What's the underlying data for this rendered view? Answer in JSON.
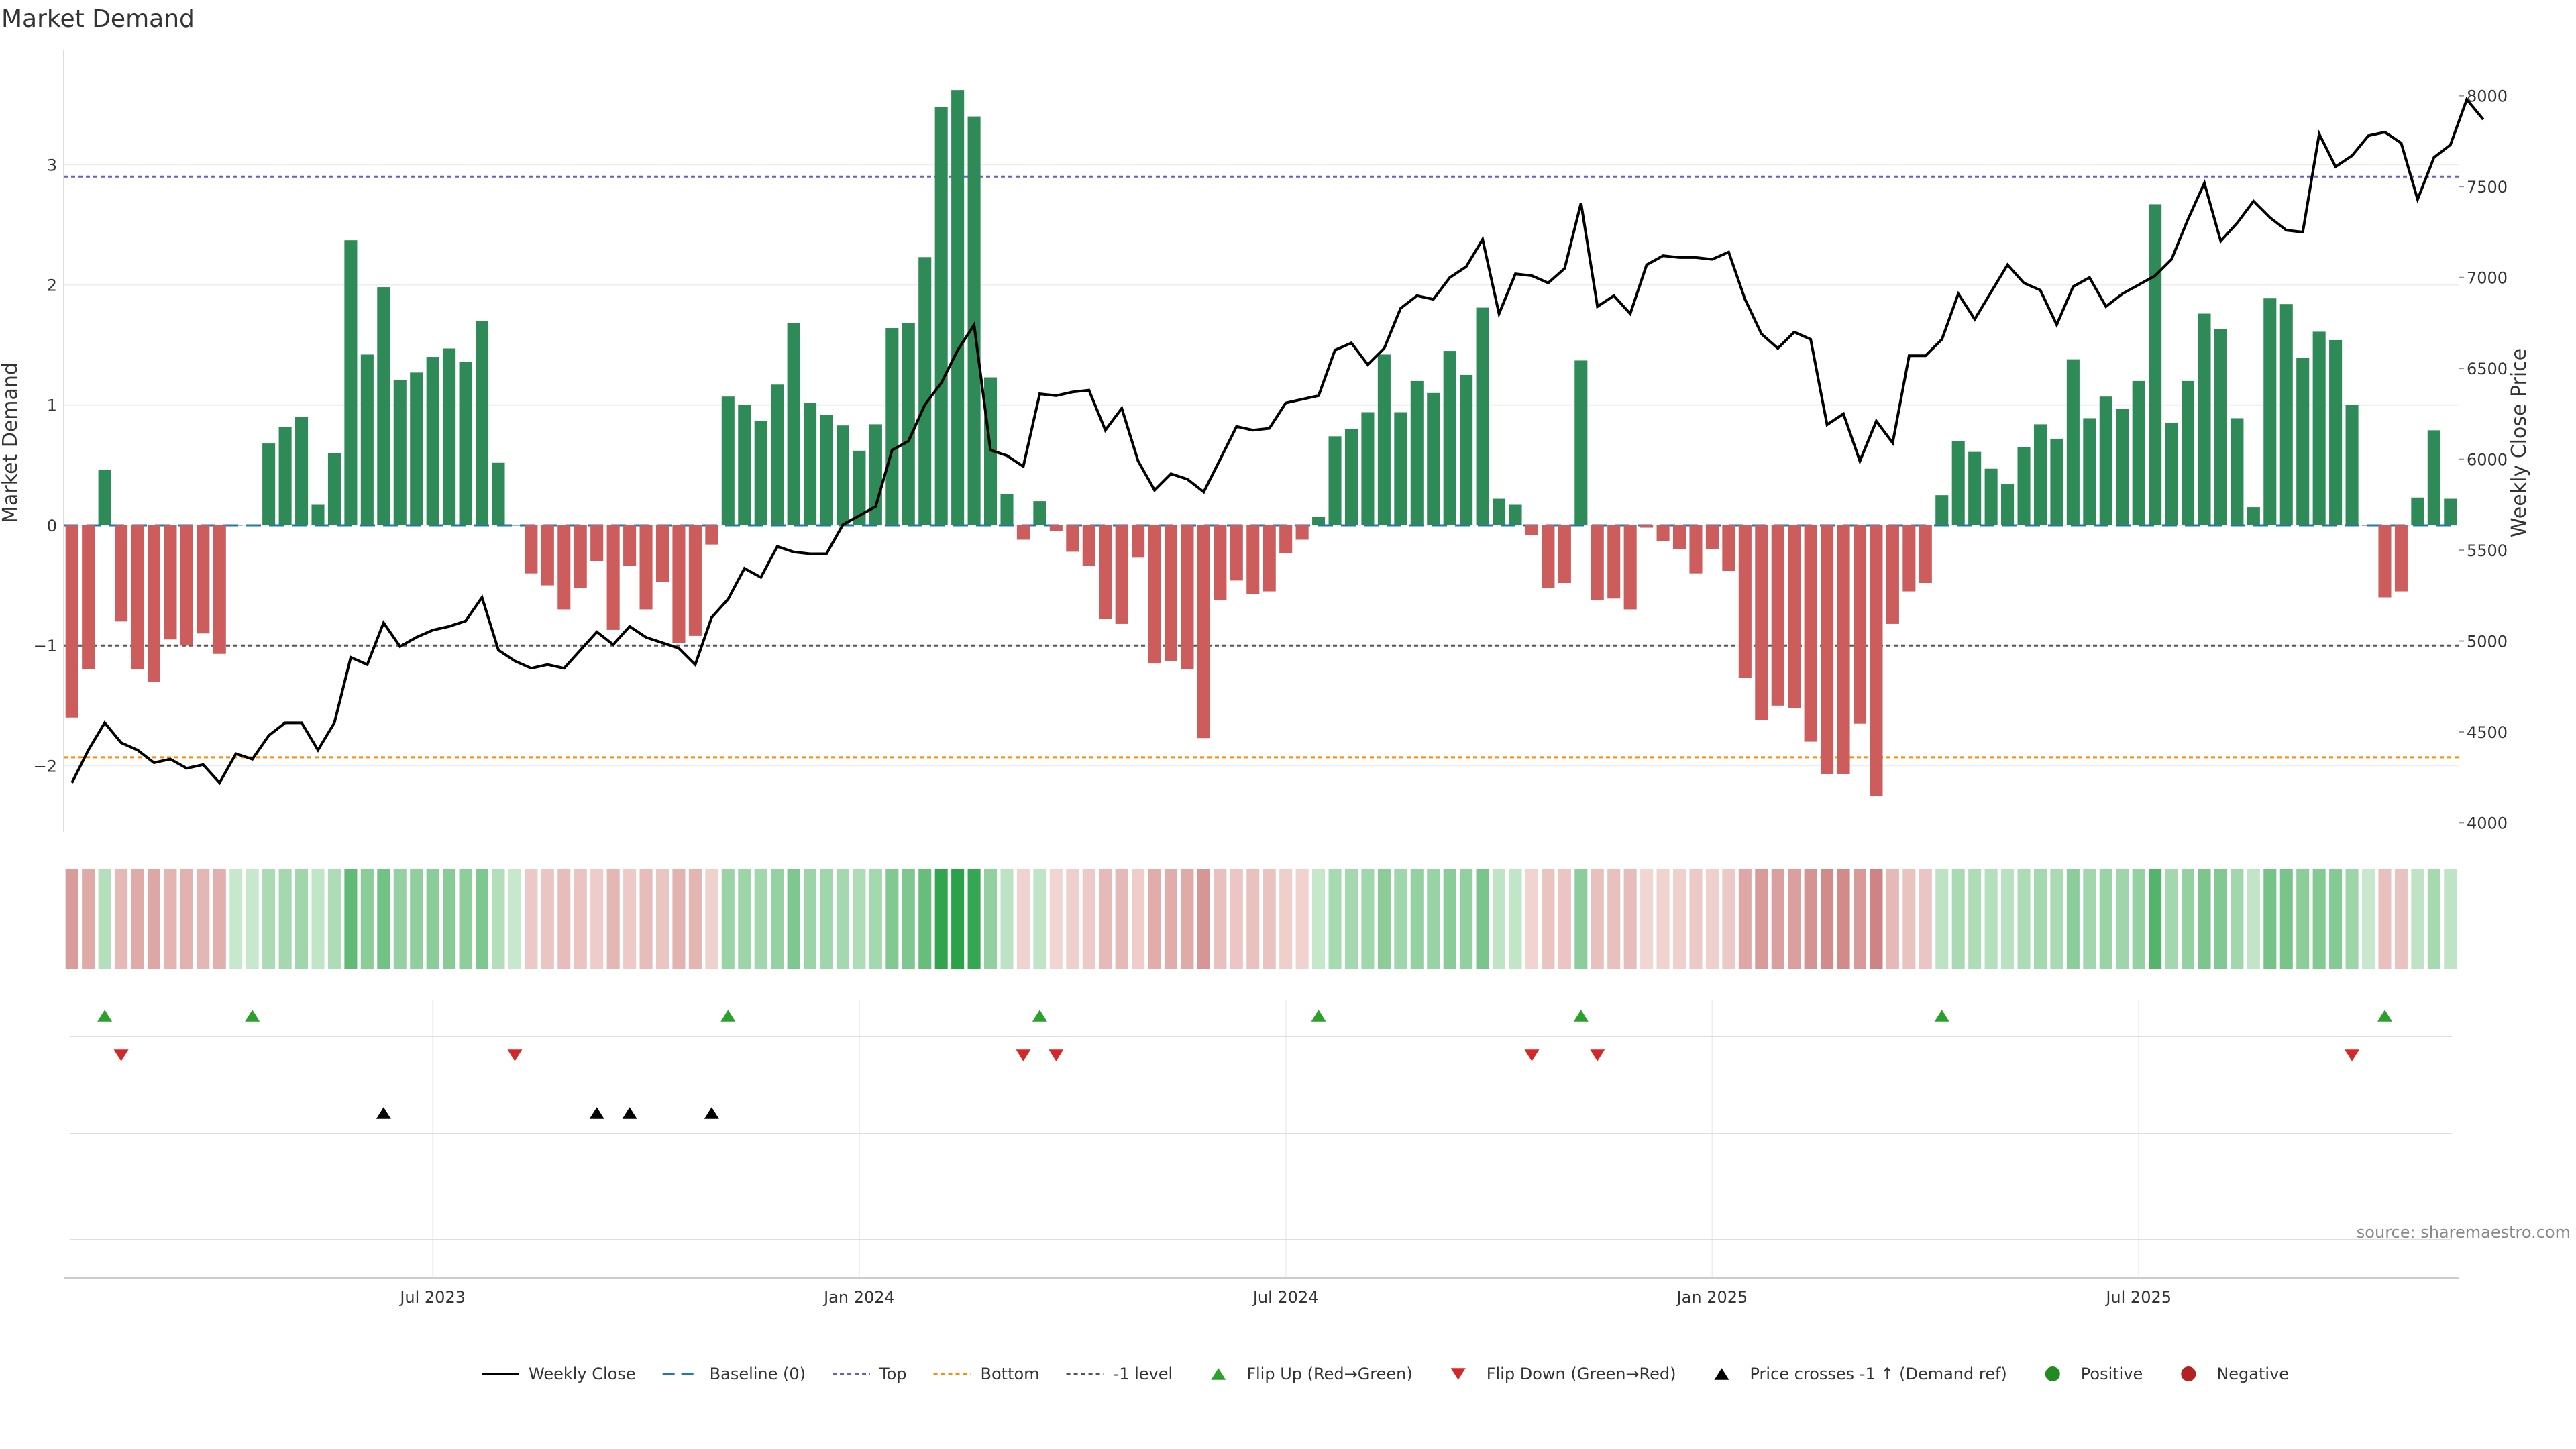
{
  "title": "Market Demand",
  "source": "source: sharemaestro.com",
  "colors": {
    "positive": "#2e8b57",
    "negative": "#cd5c5c",
    "price": "#000000",
    "baseline": "#1f77b4",
    "top": "#6a5acd",
    "bottom": "#ff8c00",
    "minus1": "#555555",
    "flip_up": "#2ca02c",
    "flip_down": "#d62728",
    "cross": "#000000"
  },
  "chart_data": {
    "type": "bar",
    "ylabel": "Market Demand",
    "y2label": "Weekly Close Price",
    "ylim": [
      -2.55,
      3.95
    ],
    "y2lim": [
      3950,
      8250
    ],
    "yticks": [
      "3",
      "2",
      "1",
      "0",
      "−1",
      "−2"
    ],
    "ytick_values": [
      3,
      2,
      1,
      0,
      -1,
      -2
    ],
    "y2ticks": [
      "8000",
      "7500",
      "7000",
      "6500",
      "6000",
      "5500",
      "5000",
      "4500",
      "4000"
    ],
    "y2tick_values": [
      8000,
      7500,
      7000,
      6500,
      6000,
      5500,
      5000,
      4500,
      4000
    ],
    "xticks": [
      "Jul 2023",
      "Jan 2024",
      "Jul 2024",
      "Jan 2025",
      "Jul 2025"
    ],
    "xtick_weeks": [
      22,
      48,
      74,
      100,
      126
    ],
    "reference_lines": {
      "top": 2.9,
      "bottom": -1.93,
      "minus1": -1,
      "baseline": 0
    },
    "demand": [
      -1.6,
      -1.2,
      0.46,
      -0.8,
      -1.2,
      -1.3,
      -0.95,
      -1.0,
      -0.9,
      -1.07,
      0,
      0,
      0.68,
      0.82,
      0.9,
      0.17,
      0.6,
      2.37,
      1.42,
      1.98,
      1.21,
      1.27,
      1.4,
      1.47,
      1.36,
      1.7,
      0.52,
      0,
      -0.4,
      -0.5,
      -0.7,
      -0.52,
      -0.3,
      -0.87,
      -0.34,
      -0.7,
      -0.47,
      -0.98,
      -0.92,
      -0.16,
      1.07,
      1.0,
      0.87,
      1.17,
      1.68,
      1.02,
      0.92,
      0.83,
      0.62,
      0.84,
      1.64,
      1.68,
      2.23,
      3.48,
      3.62,
      3.4,
      1.23,
      0.26,
      -0.12,
      0.2,
      -0.05,
      -0.22,
      -0.34,
      -0.78,
      -0.82,
      -0.27,
      -1.15,
      -1.13,
      -1.2,
      -1.77,
      -0.62,
      -0.46,
      -0.57,
      -0.55,
      -0.23,
      -0.12,
      0.07,
      0.74,
      0.8,
      0.94,
      1.42,
      0.94,
      1.2,
      1.1,
      1.45,
      1.25,
      1.81,
      0.22,
      0.17,
      -0.08,
      -0.52,
      -0.48,
      1.37,
      -0.62,
      -0.61,
      -0.7,
      -0.02,
      -0.13,
      -0.2,
      -0.4,
      -0.2,
      -0.38,
      -1.27,
      -1.62,
      -1.5,
      -1.52,
      -1.8,
      -2.07,
      -2.07,
      -1.65,
      -2.25,
      -0.82,
      -0.55,
      -0.48,
      0.25,
      0.7,
      0.61,
      0.47,
      0.34,
      0.65,
      0.84,
      0.72,
      1.38,
      0.89,
      1.07,
      0.97,
      1.2,
      2.67,
      0.85,
      1.2,
      1.76,
      1.63,
      0.89,
      0.15,
      1.89,
      1.84,
      1.39,
      1.61,
      1.54,
      1.0,
      0,
      -0.6,
      -0.55,
      0.23,
      0.79,
      0.22
    ],
    "price": [
      4220,
      4400,
      4550,
      4440,
      4400,
      4330,
      4350,
      4300,
      4320,
      4220,
      4380,
      4350,
      4480,
      4550,
      4550,
      4400,
      4550,
      4910,
      4870,
      5100,
      4970,
      5020,
      5060,
      5080,
      5110,
      5240,
      4950,
      4890,
      4850,
      4870,
      4850,
      4950,
      5050,
      4980,
      5080,
      5020,
      4990,
      4960,
      4870,
      5130,
      5230,
      5400,
      5350,
      5520,
      5490,
      5480,
      5480,
      5640,
      5690,
      5740,
      6050,
      6100,
      6300,
      6420,
      6600,
      6740,
      6050,
      6020,
      5960,
      6360,
      6350,
      6370,
      6380,
      6160,
      6280,
      5990,
      5830,
      5920,
      5890,
      5820,
      6000,
      6180,
      6160,
      6170,
      6310,
      6330,
      6350,
      6600,
      6640,
      6520,
      6610,
      6830,
      6900,
      6880,
      7000,
      7060,
      7210,
      6800,
      7020,
      7010,
      6970,
      7050,
      7410,
      6840,
      6900,
      6800,
      7070,
      7120,
      7110,
      7110,
      7100,
      7140,
      6880,
      6690,
      6610,
      6700,
      6660,
      6190,
      6250,
      5990,
      6210,
      6090,
      6570,
      6570,
      6660,
      6910,
      6770,
      6920,
      7070,
      6970,
      6930,
      6740,
      6950,
      7000,
      6840,
      6910,
      6960,
      7010,
      7100,
      7320,
      7520,
      7200,
      7300,
      7420,
      7330,
      7260,
      7250,
      7790,
      7610,
      7670,
      7780,
      7800,
      7740,
      7430,
      7660,
      7730,
      7980,
      7870
    ],
    "flip_up_weeks": [
      2,
      11,
      40,
      59,
      76,
      92,
      114,
      141
    ],
    "flip_down_weeks": [
      3,
      27,
      58,
      60,
      89,
      93,
      139
    ],
    "price_cross_weeks": [
      19,
      32,
      34,
      39
    ],
    "legend": [
      "Weekly Close",
      "Baseline (0)",
      "Top",
      "Bottom",
      "-1 level",
      "Flip Up (Red→Green)",
      "Flip Down (Green→Red)",
      "Price crosses -1 ↑ (Demand ref)",
      "Positive",
      "Negative"
    ]
  }
}
